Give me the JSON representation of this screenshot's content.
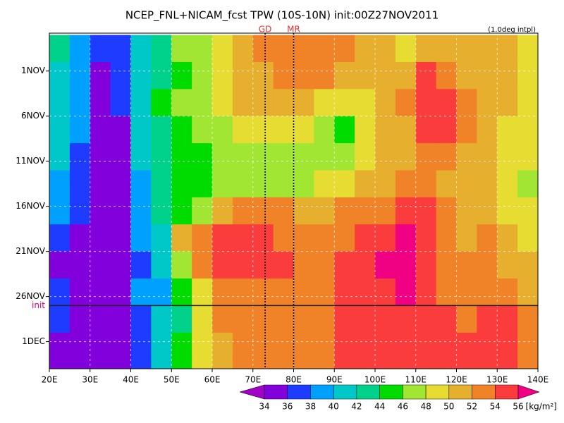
{
  "chart_data": {
    "type": "heatmap",
    "title": "NCEP_FNL+NICAM_fcst TPW (10S-10N) init:00Z27NOV2011",
    "annotation": "(1.0deg intpl)",
    "x": [
      22.5,
      27.5,
      32.5,
      37.5,
      42.5,
      47.5,
      52.5,
      57.5,
      62.5,
      67.5,
      72.5,
      77.5,
      82.5,
      87.5,
      92.5,
      97.5,
      102.5,
      107.5,
      112.5,
      117.5,
      122.5,
      127.5,
      132.5,
      137.5
    ],
    "y": [
      -1.5,
      1.5,
      4.5,
      7.5,
      10.5,
      13.5,
      16.5,
      19.5,
      22.5,
      25.5,
      28.5,
      31.5,
      34.5
    ],
    "z": [
      [
        42,
        38,
        36,
        37,
        41,
        43,
        46,
        47,
        49,
        50,
        52,
        53,
        53,
        52,
        53,
        51,
        50,
        49,
        50,
        51,
        51,
        50,
        51,
        49
      ],
      [
        41,
        38,
        35,
        36,
        40,
        43,
        45,
        47,
        49,
        50,
        51,
        52,
        52,
        52,
        51,
        50,
        50,
        50,
        54,
        53,
        51,
        50,
        50,
        49
      ],
      [
        41,
        38,
        35,
        36,
        41,
        44,
        46,
        47,
        48,
        50,
        50,
        50,
        50,
        49,
        48,
        49,
        50,
        52,
        55,
        54,
        52,
        50,
        50,
        48
      ],
      [
        40,
        38,
        35,
        35,
        40,
        43,
        45,
        46,
        47,
        49,
        49,
        48,
        48,
        46,
        45,
        48,
        50,
        51,
        54,
        54,
        52,
        50,
        49,
        48
      ],
      [
        40,
        37,
        35,
        35,
        40,
        42,
        44,
        45,
        46,
        46,
        46,
        46,
        46,
        46,
        47,
        49,
        50,
        51,
        52,
        52,
        51,
        50,
        49,
        48
      ],
      [
        39,
        37,
        35,
        35,
        39,
        42,
        44,
        45,
        47,
        47,
        47,
        47,
        47,
        48,
        49,
        50,
        51,
        52,
        52,
        51,
        50,
        50,
        48,
        47
      ],
      [
        38,
        36,
        35,
        35,
        39,
        42,
        44,
        46,
        50,
        52,
        53,
        52,
        51,
        51,
        52,
        52,
        53,
        55,
        54,
        52,
        51,
        51,
        49,
        48
      ],
      [
        37,
        35,
        34,
        35,
        38,
        41,
        51,
        53,
        54,
        55,
        54,
        53,
        53,
        52,
        53,
        54,
        55,
        56,
        55,
        53,
        51,
        52,
        50,
        49
      ],
      [
        35,
        34,
        34,
        35,
        37,
        40,
        47,
        53,
        54,
        54,
        54,
        54,
        53,
        53,
        54,
        55,
        56,
        56,
        55,
        53,
        52,
        52,
        51,
        50
      ],
      [
        36,
        35,
        34,
        35,
        38,
        39,
        44,
        48,
        52,
        53,
        53,
        53,
        53,
        53,
        54,
        54,
        55,
        56,
        55,
        53,
        52,
        53,
        52,
        51
      ],
      [
        36,
        35,
        34,
        35,
        37,
        40,
        43,
        48,
        52,
        53,
        53,
        53,
        52,
        53,
        54,
        54,
        55,
        55,
        55,
        54,
        53,
        54,
        54,
        52
      ],
      [
        34,
        34,
        34,
        34,
        36,
        40,
        44,
        48,
        51,
        52,
        52,
        53,
        53,
        53,
        54,
        54,
        54,
        55,
        55,
        55,
        55,
        55,
        55,
        53
      ],
      [
        34,
        34,
        34,
        34,
        36,
        40,
        44,
        48,
        51,
        52,
        52,
        52,
        53,
        53,
        54,
        54,
        54,
        55,
        55,
        55,
        55,
        55,
        55,
        53
      ]
    ],
    "xlim": [
      20,
      140
    ],
    "ylim": [
      -3.2,
      34
    ],
    "xticks": [
      {
        "value": 20,
        "label": "20E"
      },
      {
        "value": 30,
        "label": "30E"
      },
      {
        "value": 40,
        "label": "40E"
      },
      {
        "value": 50,
        "label": "50E"
      },
      {
        "value": 60,
        "label": "60E"
      },
      {
        "value": 70,
        "label": "70E"
      },
      {
        "value": 80,
        "label": "80E"
      },
      {
        "value": 90,
        "label": "90E"
      },
      {
        "value": 100,
        "label": "100E"
      },
      {
        "value": 110,
        "label": "110E"
      },
      {
        "value": 120,
        "label": "120E"
      },
      {
        "value": 130,
        "label": "130E"
      },
      {
        "value": 140,
        "label": "140E"
      }
    ],
    "yticks": [
      {
        "value": 1,
        "label": "1NOV"
      },
      {
        "value": 6,
        "label": "6NOV"
      },
      {
        "value": 11,
        "label": "11NOV"
      },
      {
        "value": 16,
        "label": "16NOV"
      },
      {
        "value": 21,
        "label": "21NOV"
      },
      {
        "value": 26,
        "label": "26NOV"
      },
      {
        "value": 31,
        "label": "1DEC"
      }
    ],
    "grid": true,
    "init": {
      "value": 27,
      "label": "init",
      "color": "#e0007a"
    },
    "markers": [
      {
        "name": "GD",
        "x": 73,
        "color": "#e03030"
      },
      {
        "name": "MR",
        "x": 80,
        "color": "#e03030"
      }
    ],
    "colorbar": {
      "levels": [
        34,
        36,
        38,
        40,
        42,
        44,
        46,
        48,
        50,
        52,
        54,
        56
      ],
      "colors": [
        "#a000c8",
        "#8200dc",
        "#1e3cff",
        "#00a0ff",
        "#00c8c8",
        "#00d28c",
        "#00dc00",
        "#a0e632",
        "#e6dc32",
        "#e6af2d",
        "#f08228",
        "#fa3c3c",
        "#f00082"
      ],
      "unit": "[kg/m²]"
    }
  }
}
